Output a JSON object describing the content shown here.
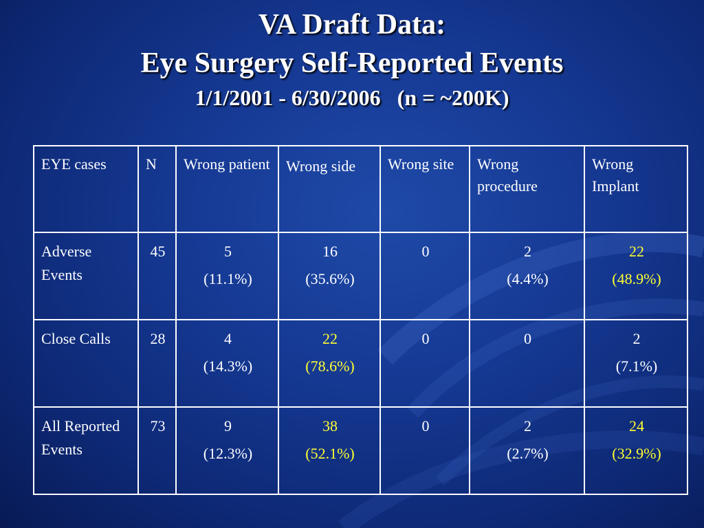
{
  "title": {
    "line1": "VA Draft Data:",
    "line2": "Eye Surgery Self-Reported Events",
    "line3_date": "1/1/2001 - 6/30/2006",
    "line3_n": "(n = ~200K)"
  },
  "colors": {
    "background": "#163a95",
    "text": "#ffffff",
    "highlight": "#ffff33",
    "border": "#ffffff"
  },
  "table": {
    "headers": [
      "EYE cases",
      "N",
      "Wrong patient",
      "Wrong side",
      "Wrong site",
      "Wrong procedure",
      "Wrong Implant"
    ],
    "rows": [
      {
        "label": "Adverse Events",
        "n": "45",
        "patient": {
          "count": "5",
          "pct": "(11.1%)",
          "highlight": false
        },
        "side": {
          "count": "16",
          "pct": "(35.6%)",
          "highlight": false
        },
        "site": {
          "count": "0",
          "pct": "",
          "highlight": false
        },
        "procedure": {
          "count": "2",
          "pct": "(4.4%)",
          "highlight": false
        },
        "implant": {
          "count": "22",
          "pct": "(48.9%)",
          "highlight": true
        }
      },
      {
        "label": "Close Calls",
        "n": "28",
        "patient": {
          "count": "4",
          "pct": "(14.3%)",
          "highlight": false
        },
        "side": {
          "count": "22",
          "pct": "(78.6%)",
          "highlight": true
        },
        "site": {
          "count": "0",
          "pct": "",
          "highlight": false
        },
        "procedure": {
          "count": "0",
          "pct": "",
          "highlight": false
        },
        "implant": {
          "count": "2",
          "pct": "(7.1%)",
          "highlight": false
        }
      },
      {
        "label": "All Reported Events",
        "n": "73",
        "patient": {
          "count": "9",
          "pct": "(12.3%)",
          "highlight": false
        },
        "side": {
          "count": "38",
          "pct": "(52.1%)",
          "highlight": true
        },
        "site": {
          "count": "0",
          "pct": "",
          "highlight": false
        },
        "procedure": {
          "count": "2",
          "pct": "(2.7%)",
          "highlight": false
        },
        "implant": {
          "count": "24",
          "pct": "(32.9%)",
          "highlight": true
        }
      }
    ]
  }
}
